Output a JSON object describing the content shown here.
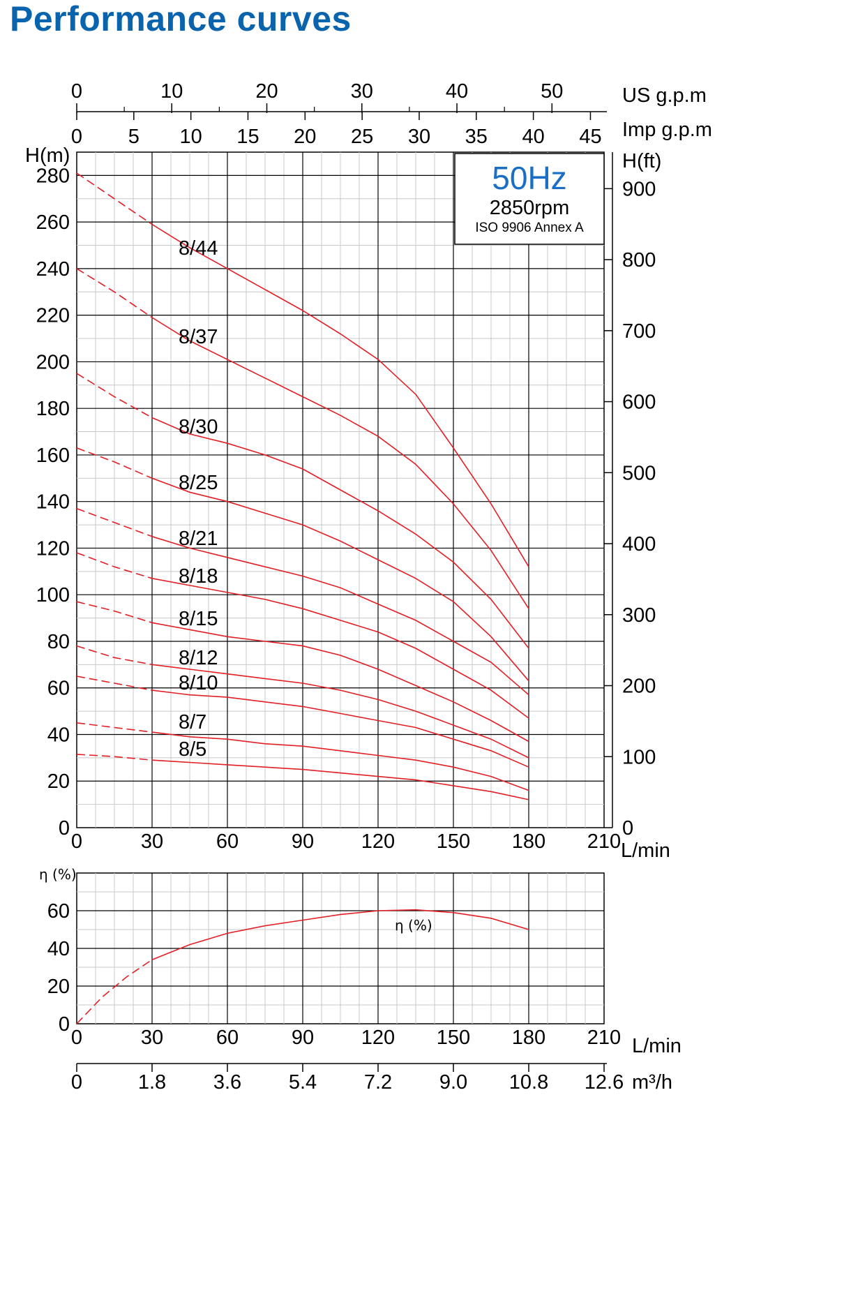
{
  "title": "Performance curves",
  "colors": {
    "title": "#0a64ad",
    "curve": "#e31e24",
    "info_hz": "#1a6fc4",
    "grid_major": "#000000",
    "grid_minor": "#c8c8c8"
  },
  "chart_data": [
    {
      "type": "line",
      "x_unit_label": "L/min",
      "xlim": [
        0,
        210
      ],
      "x_ticks": [
        0,
        30,
        60,
        90,
        120,
        150,
        180,
        210
      ],
      "ylabel": "H(m)",
      "ylim": [
        0,
        290
      ],
      "y_ticks": [
        0,
        20,
        40,
        60,
        80,
        100,
        120,
        140,
        160,
        180,
        200,
        220,
        240,
        260,
        280
      ],
      "y2label": "H(ft)",
      "y2_ticks": [
        0,
        100,
        200,
        300,
        400,
        500,
        600,
        700,
        800,
        900
      ],
      "top_axis_us": {
        "label": "US g.p.m",
        "ticks": [
          0,
          10,
          20,
          30,
          40,
          50
        ]
      },
      "top_axis_imp": {
        "label": "Imp g.p.m",
        "ticks": [
          0,
          5,
          10,
          15,
          20,
          25,
          30,
          35,
          40,
          45
        ]
      },
      "info_box": {
        "frequency": "50Hz",
        "speed": "2850rpm",
        "standard": "ISO 9906 Annex A"
      },
      "grid": true,
      "dashed_below_flow": 30,
      "series": [
        {
          "name": "8/44",
          "x": [
            0,
            15,
            30,
            45,
            60,
            75,
            90,
            105,
            120,
            135,
            150,
            165,
            180
          ],
          "y": [
            281,
            270,
            259,
            249,
            240,
            231,
            222,
            212,
            201,
            186,
            163,
            139,
            112
          ]
        },
        {
          "name": "8/37",
          "x": [
            0,
            15,
            30,
            45,
            60,
            75,
            90,
            105,
            120,
            135,
            150,
            165,
            180
          ],
          "y": [
            240,
            230,
            219,
            209,
            201,
            193,
            185,
            177,
            168,
            156,
            139,
            119,
            94
          ]
        },
        {
          "name": "8/30",
          "x": [
            0,
            15,
            30,
            45,
            60,
            75,
            90,
            105,
            120,
            135,
            150,
            165,
            180
          ],
          "y": [
            195,
            185,
            176,
            169,
            165,
            160,
            154,
            145,
            136,
            126,
            114,
            98,
            77
          ]
        },
        {
          "name": "8/25",
          "x": [
            0,
            15,
            30,
            45,
            60,
            75,
            90,
            105,
            120,
            135,
            150,
            165,
            180
          ],
          "y": [
            163,
            157,
            150,
            144,
            140,
            135,
            130,
            123,
            115,
            107,
            97,
            82,
            63
          ]
        },
        {
          "name": "8/21",
          "x": [
            0,
            15,
            30,
            45,
            60,
            75,
            90,
            105,
            120,
            135,
            150,
            165,
            180
          ],
          "y": [
            137,
            131,
            125,
            120,
            116,
            112,
            108,
            103,
            96,
            89,
            80,
            71,
            57
          ]
        },
        {
          "name": "8/18",
          "x": [
            0,
            15,
            30,
            45,
            60,
            75,
            90,
            105,
            120,
            135,
            150,
            165,
            180
          ],
          "y": [
            118,
            112,
            107,
            104,
            101,
            98,
            94,
            89,
            84,
            77,
            68,
            59,
            47
          ]
        },
        {
          "name": "8/15",
          "x": [
            0,
            15,
            30,
            45,
            60,
            75,
            90,
            105,
            120,
            135,
            150,
            165,
            180
          ],
          "y": [
            97,
            93,
            88,
            85,
            82,
            80,
            78,
            74,
            68,
            61,
            54,
            46,
            37
          ]
        },
        {
          "name": "8/12",
          "x": [
            0,
            15,
            30,
            45,
            60,
            75,
            90,
            105,
            120,
            135,
            150,
            165,
            180
          ],
          "y": [
            78,
            73,
            70,
            68,
            66,
            64,
            62,
            59,
            55,
            50,
            44,
            38,
            30
          ]
        },
        {
          "name": "8/10",
          "x": [
            0,
            15,
            30,
            45,
            60,
            75,
            90,
            105,
            120,
            135,
            150,
            165,
            180
          ],
          "y": [
            65,
            62,
            59,
            57,
            56,
            54,
            52,
            49,
            46,
            43,
            38,
            33,
            26
          ]
        },
        {
          "name": "8/7",
          "x": [
            0,
            15,
            30,
            45,
            60,
            75,
            90,
            105,
            120,
            135,
            150,
            165,
            180
          ],
          "y": [
            45,
            43,
            41,
            39,
            38,
            36,
            35,
            33,
            31,
            29,
            26,
            22,
            16
          ]
        },
        {
          "name": "8/5",
          "x": [
            0,
            15,
            30,
            45,
            60,
            75,
            90,
            105,
            120,
            135,
            150,
            165,
            180
          ],
          "y": [
            31.5,
            30.5,
            29,
            28,
            27,
            26,
            25,
            23.5,
            22,
            20.5,
            18,
            15.5,
            12
          ]
        }
      ]
    },
    {
      "type": "line",
      "ylabel": "η (%)",
      "ylim": [
        0,
        80
      ],
      "y_ticks": [
        0,
        20,
        40,
        60
      ],
      "x_unit_label": "L/min",
      "xlim": [
        0,
        210
      ],
      "x_ticks": [
        0,
        30,
        60,
        90,
        120,
        150,
        180,
        210
      ],
      "bottom_axis_m3h": {
        "label": "m³/h",
        "ticks": [
          "0",
          "1.8",
          "3.6",
          "5.4",
          "7.2",
          "9.0",
          "10.8",
          "12.6"
        ]
      },
      "grid": true,
      "dashed_below_flow": 30,
      "series": [
        {
          "name": "η (%)",
          "x": [
            0,
            10,
            20,
            30,
            45,
            60,
            75,
            90,
            105,
            120,
            135,
            150,
            165,
            180
          ],
          "y": [
            0,
            14,
            25,
            34,
            42,
            48,
            52,
            55,
            58,
            60,
            60.5,
            59,
            56,
            50
          ]
        }
      ]
    }
  ]
}
